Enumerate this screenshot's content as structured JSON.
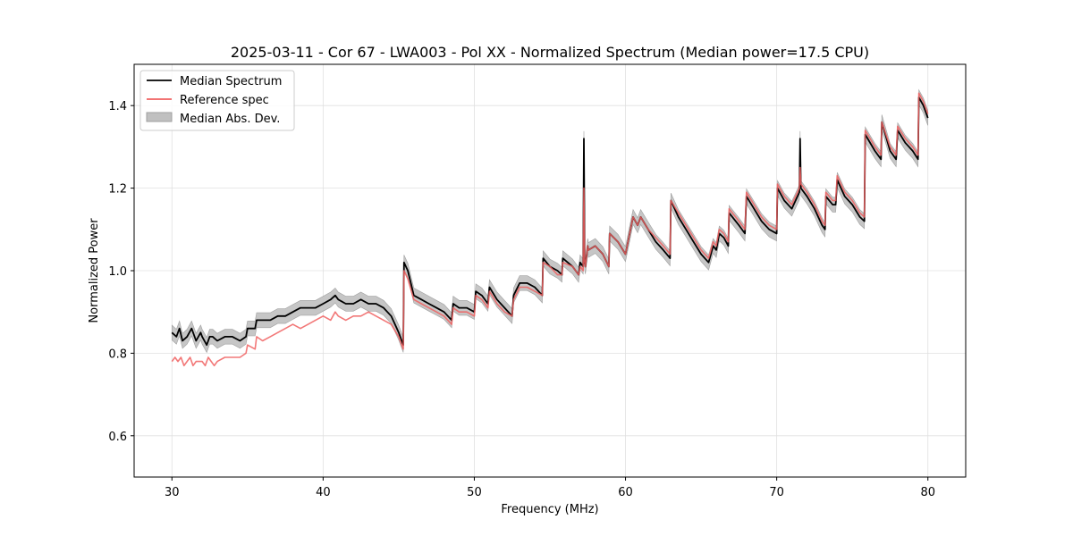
{
  "chart_data": {
    "type": "line",
    "title": "2025-03-11 - Cor 67 - LWA003 - Pol XX - Normalized Spectrum (Median power=17.5 CPU)",
    "xlabel": "Frequency (MHz)",
    "ylabel": "Normalized Power",
    "xlim": [
      27.5,
      82.5
    ],
    "ylim": [
      0.5,
      1.5
    ],
    "xticks": [
      30,
      40,
      50,
      60,
      70,
      80
    ],
    "xtick_labels": [
      "30",
      "40",
      "50",
      "60",
      "70",
      "80"
    ],
    "yticks": [
      0.6,
      0.8,
      1.0,
      1.2,
      1.4
    ],
    "ytick_labels": [
      "0.6",
      "0.8",
      "1.0",
      "1.2",
      "1.4"
    ],
    "grid": true,
    "legend_position": "top-left",
    "colors": {
      "median": "#000000",
      "reference": "#f06060",
      "mad_fill": "#c0c0c0",
      "mad_edge": "#a0a0a0",
      "grid": "#e0e0e0"
    },
    "series": [
      {
        "name": "Median Spectrum",
        "x": [
          30.0,
          30.3,
          30.5,
          30.7,
          31.0,
          31.3,
          31.6,
          31.9,
          32.0,
          32.3,
          32.5,
          32.7,
          33.0,
          33.5,
          34.0,
          34.5,
          34.9,
          35.0,
          35.5,
          35.6,
          36.0,
          36.5,
          37.0,
          37.5,
          38.0,
          38.5,
          39.0,
          39.5,
          40.0,
          40.5,
          40.8,
          41.0,
          41.5,
          42.0,
          42.5,
          43.0,
          43.5,
          44.0,
          44.5,
          45.0,
          45.2,
          45.3,
          45.35,
          45.6,
          46.0,
          46.5,
          47.0,
          47.5,
          48.0,
          48.5,
          48.6,
          49.0,
          49.5,
          50.0,
          50.1,
          50.5,
          50.9,
          51.0,
          51.5,
          52.0,
          52.5,
          52.6,
          53.0,
          53.5,
          54.0,
          54.5,
          54.55,
          55.0,
          55.5,
          55.8,
          55.85,
          56.5,
          56.9,
          57.0,
          57.2,
          57.25,
          57.3,
          57.35,
          57.5,
          57.55,
          58.0,
          58.5,
          58.9,
          58.95,
          59.5,
          60.0,
          60.5,
          60.8,
          61.0,
          61.5,
          62.0,
          62.5,
          62.95,
          63.0,
          63.5,
          64.0,
          64.5,
          65.0,
          65.5,
          65.8,
          66.0,
          66.2,
          66.5,
          66.8,
          66.85,
          67.5,
          67.9,
          68.0,
          68.5,
          69.0,
          69.5,
          70.0,
          70.05,
          70.5,
          71.0,
          71.5,
          71.55,
          71.6,
          72.0,
          72.5,
          73.0,
          73.2,
          73.25,
          73.7,
          73.9,
          74.0,
          74.5,
          75.0,
          75.5,
          75.8,
          75.85,
          76.5,
          76.9,
          76.95,
          77.5,
          77.9,
          78.0,
          78.5,
          79.0,
          79.35,
          79.4,
          79.7,
          80.0
        ],
        "y": [
          0.85,
          0.84,
          0.86,
          0.83,
          0.84,
          0.86,
          0.83,
          0.85,
          0.84,
          0.82,
          0.84,
          0.84,
          0.83,
          0.84,
          0.84,
          0.83,
          0.84,
          0.86,
          0.86,
          0.88,
          0.88,
          0.88,
          0.89,
          0.89,
          0.9,
          0.91,
          0.91,
          0.91,
          0.92,
          0.93,
          0.94,
          0.93,
          0.92,
          0.92,
          0.93,
          0.92,
          0.92,
          0.91,
          0.89,
          0.85,
          0.83,
          0.82,
          1.02,
          1.0,
          0.94,
          0.93,
          0.92,
          0.91,
          0.9,
          0.88,
          0.92,
          0.91,
          0.91,
          0.9,
          0.95,
          0.94,
          0.92,
          0.96,
          0.93,
          0.91,
          0.89,
          0.94,
          0.97,
          0.97,
          0.96,
          0.94,
          1.03,
          1.01,
          1.0,
          0.99,
          1.03,
          1.01,
          0.99,
          1.02,
          1.01,
          1.32,
          1.02,
          1.01,
          1.06,
          1.05,
          1.06,
          1.04,
          1.01,
          1.09,
          1.07,
          1.04,
          1.13,
          1.11,
          1.13,
          1.1,
          1.07,
          1.05,
          1.03,
          1.17,
          1.13,
          1.1,
          1.07,
          1.04,
          1.02,
          1.06,
          1.05,
          1.09,
          1.08,
          1.06,
          1.14,
          1.11,
          1.09,
          1.18,
          1.15,
          1.12,
          1.1,
          1.09,
          1.2,
          1.17,
          1.15,
          1.19,
          1.32,
          1.2,
          1.18,
          1.15,
          1.11,
          1.1,
          1.18,
          1.16,
          1.16,
          1.22,
          1.18,
          1.16,
          1.13,
          1.12,
          1.33,
          1.29,
          1.27,
          1.36,
          1.29,
          1.27,
          1.34,
          1.31,
          1.29,
          1.27,
          1.42,
          1.4,
          1.37
        ]
      },
      {
        "name": "Reference spec",
        "x": [
          30.0,
          30.2,
          30.4,
          30.6,
          30.8,
          31.0,
          31.2,
          31.4,
          31.6,
          31.8,
          32.0,
          32.2,
          32.4,
          32.6,
          32.8,
          33.0,
          33.5,
          34.0,
          34.5,
          34.9,
          35.0,
          35.5,
          35.6,
          36.0,
          36.5,
          37.0,
          37.5,
          38.0,
          38.5,
          39.0,
          39.5,
          40.0,
          40.5,
          40.8,
          41.0,
          41.5,
          42.0,
          42.5,
          43.0,
          43.5,
          44.0,
          44.5,
          45.0,
          45.2,
          45.3,
          45.35,
          45.6,
          46.0,
          46.5,
          47.0,
          47.5,
          48.0,
          48.5,
          48.6,
          49.0,
          49.5,
          50.0,
          50.1,
          50.5,
          50.9,
          51.0,
          51.5,
          52.0,
          52.5,
          52.6,
          53.0,
          53.5,
          54.0,
          54.5,
          54.55,
          55.0,
          55.5,
          55.8,
          55.85,
          56.5,
          56.9,
          57.0,
          57.2,
          57.25,
          57.3,
          57.35,
          57.5,
          57.55,
          58.0,
          58.5,
          58.9,
          58.95,
          59.5,
          60.0,
          60.5,
          60.8,
          61.0,
          61.5,
          62.0,
          62.5,
          62.95,
          63.0,
          63.5,
          64.0,
          64.5,
          65.0,
          65.5,
          65.8,
          66.0,
          66.2,
          66.5,
          66.8,
          66.85,
          67.5,
          67.9,
          68.0,
          68.5,
          69.0,
          69.5,
          70.0,
          70.05,
          70.5,
          71.0,
          71.5,
          71.55,
          71.6,
          72.0,
          72.5,
          73.0,
          73.2,
          73.25,
          73.7,
          73.9,
          74.0,
          74.5,
          75.0,
          75.5,
          75.8,
          75.85,
          76.5,
          76.9,
          76.95,
          77.5,
          77.9,
          78.0,
          78.5,
          79.0,
          79.35,
          79.4,
          79.7,
          80.0
        ],
        "y": [
          0.78,
          0.79,
          0.78,
          0.79,
          0.77,
          0.78,
          0.79,
          0.77,
          0.78,
          0.78,
          0.78,
          0.77,
          0.79,
          0.78,
          0.77,
          0.78,
          0.79,
          0.79,
          0.79,
          0.8,
          0.82,
          0.81,
          0.84,
          0.83,
          0.84,
          0.85,
          0.86,
          0.87,
          0.86,
          0.87,
          0.88,
          0.89,
          0.88,
          0.9,
          0.89,
          0.88,
          0.89,
          0.89,
          0.9,
          0.89,
          0.88,
          0.87,
          0.84,
          0.82,
          0.81,
          1.0,
          0.98,
          0.93,
          0.92,
          0.91,
          0.9,
          0.89,
          0.87,
          0.91,
          0.9,
          0.9,
          0.89,
          0.94,
          0.93,
          0.91,
          0.95,
          0.92,
          0.9,
          0.89,
          0.93,
          0.96,
          0.96,
          0.95,
          0.94,
          1.02,
          1.01,
          0.99,
          0.99,
          1.02,
          1.01,
          0.99,
          1.01,
          1.0,
          1.2,
          1.02,
          1.01,
          1.06,
          1.05,
          1.06,
          1.04,
          1.01,
          1.09,
          1.07,
          1.04,
          1.13,
          1.11,
          1.13,
          1.1,
          1.08,
          1.06,
          1.04,
          1.17,
          1.14,
          1.11,
          1.08,
          1.05,
          1.03,
          1.07,
          1.06,
          1.1,
          1.09,
          1.07,
          1.15,
          1.12,
          1.1,
          1.19,
          1.16,
          1.13,
          1.11,
          1.1,
          1.21,
          1.18,
          1.16,
          1.2,
          1.25,
          1.21,
          1.19,
          1.16,
          1.12,
          1.11,
          1.19,
          1.17,
          1.17,
          1.23,
          1.19,
          1.17,
          1.14,
          1.13,
          1.34,
          1.3,
          1.28,
          1.36,
          1.3,
          1.28,
          1.35,
          1.32,
          1.3,
          1.28,
          1.43,
          1.41,
          1.38
        ]
      },
      {
        "name": "Median Abs. Dev.",
        "kind": "band",
        "half_width": 0.018
      }
    ]
  }
}
